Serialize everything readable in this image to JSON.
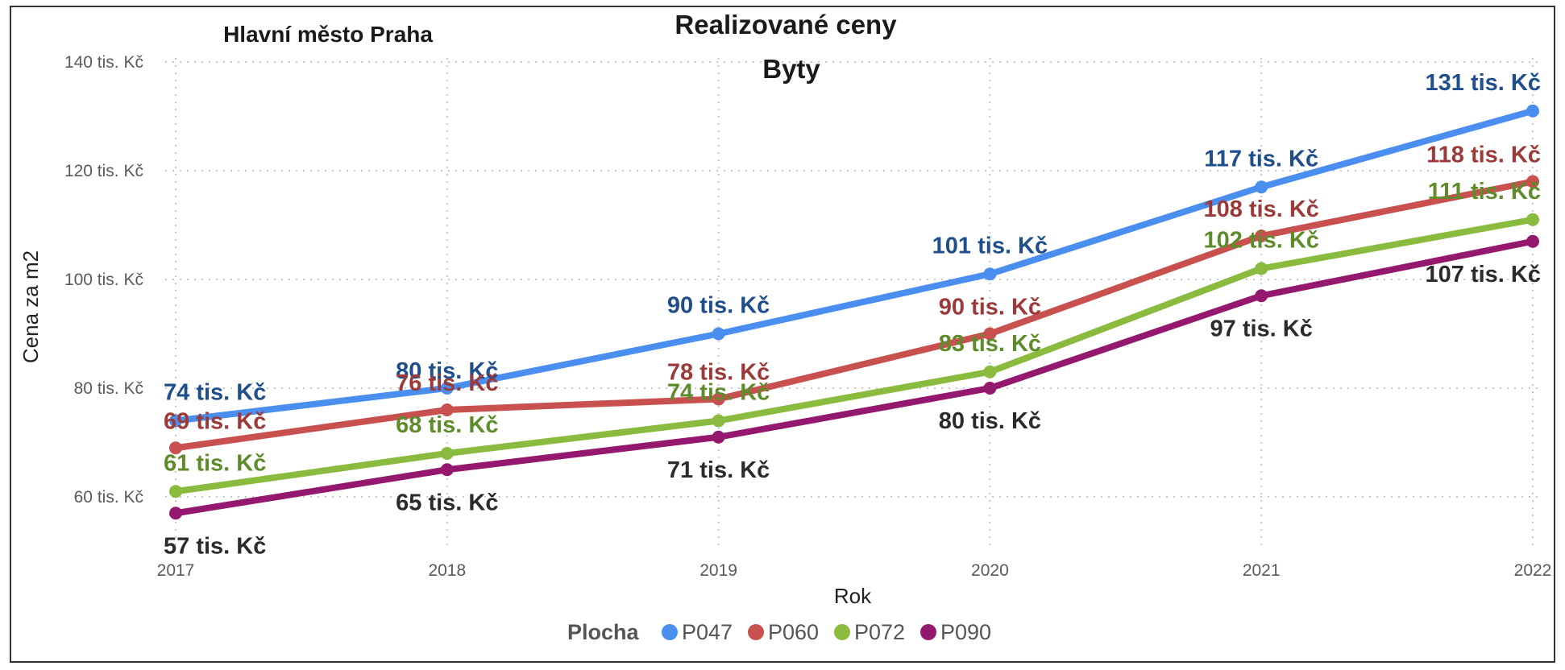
{
  "region_label": "Hlavní město Praha",
  "chart_data": {
    "type": "line",
    "title": "Realizované ceny",
    "subtitle": "Byty",
    "xlabel": "Rok",
    "ylabel": "Cena za m2",
    "x": [
      2017,
      2018,
      2019,
      2020,
      2021,
      2022
    ],
    "xticks": [
      "2017",
      "2018",
      "2019",
      "2020",
      "2021",
      "2022"
    ],
    "ylim": [
      52,
      142
    ],
    "yticks": [
      {
        "value": 60,
        "label": "60 tis. Kč"
      },
      {
        "value": 80,
        "label": "80 tis. Kč"
      },
      {
        "value": 100,
        "label": "100 tis. Kč"
      },
      {
        "value": 120,
        "label": "120 tis. Kč"
      },
      {
        "value": 140,
        "label": "140 tis. Kč"
      }
    ],
    "grid": true,
    "legend": {
      "title": "Plocha",
      "placement": "bottom"
    },
    "series": [
      {
        "name": "P047",
        "color": "#4a8ef0",
        "label_color": "#1f4e8c",
        "values": [
          74,
          80,
          90,
          101,
          117,
          131
        ],
        "labels": [
          "74 tis. Kč",
          "80 tis. Kč",
          "90 tis. Kč",
          "101 tis. Kč",
          "117 tis. Kč",
          "131 tis. Kč"
        ]
      },
      {
        "name": "P060",
        "color": "#c8504f",
        "label_color": "#9c3a3a",
        "values": [
          69,
          76,
          78,
          90,
          108,
          118
        ],
        "labels": [
          "69 tis. Kč",
          "76 tis. Kč",
          "78 tis. Kč",
          "90 tis. Kč",
          "108 tis. Kč",
          "118 tis. Kč"
        ]
      },
      {
        "name": "P072",
        "color": "#8aba3e",
        "label_color": "#5e8c2a",
        "values": [
          61,
          68,
          74,
          83,
          102,
          111
        ],
        "labels": [
          "61 tis. Kč",
          "68 tis. Kč",
          "74 tis. Kč",
          "83 tis. Kč",
          "102 tis. Kč",
          "111 tis. Kč"
        ]
      },
      {
        "name": "P090",
        "color": "#94196e",
        "label_color": "#2b2b2b",
        "values": [
          57,
          65,
          71,
          80,
          97,
          107
        ],
        "labels": [
          "57 tis. Kč",
          "65 tis. Kč",
          "71 tis. Kč",
          "80 tis. Kč",
          "97 tis. Kč",
          "107 tis. Kč"
        ]
      }
    ]
  }
}
